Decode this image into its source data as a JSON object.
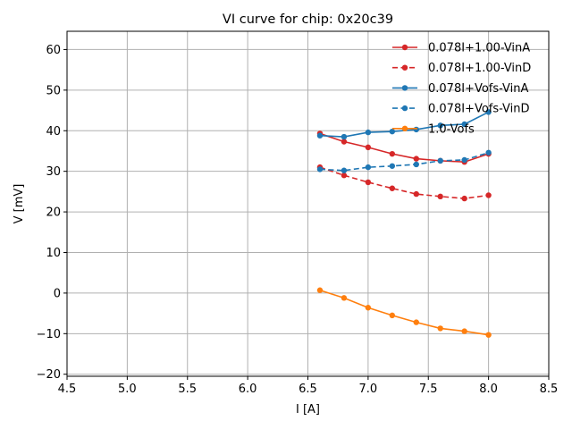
{
  "chart_data": {
    "type": "line",
    "title": "VI curve for chip: 0x20c39",
    "xlabel": "I [A]",
    "ylabel": "V [mV]",
    "xlim": [
      4.5,
      8.5
    ],
    "ylim": [
      -20.5,
      64.5
    ],
    "xticks": [
      "4.5",
      "5.0",
      "5.5",
      "6.0",
      "6.5",
      "7.0",
      "7.5",
      "8.0",
      "8.5"
    ],
    "yticks": [
      "−20",
      "−10",
      "0",
      "10",
      "20",
      "30",
      "40",
      "50",
      "60"
    ],
    "xtick_values": [
      4.5,
      5.0,
      5.5,
      6.0,
      6.5,
      7.0,
      7.5,
      8.0,
      8.5
    ],
    "ytick_values": [
      -20,
      -10,
      0,
      10,
      20,
      30,
      40,
      50,
      60
    ],
    "grid": true,
    "legend_position": "top-right",
    "x": [
      6.6,
      6.8,
      7.0,
      7.2,
      7.4,
      7.6,
      7.8,
      8.0
    ],
    "series": [
      {
        "name": "0.078I+1.00-VinA",
        "color": "#d62728",
        "dashed": false,
        "values": [
          39.3,
          37.3,
          35.9,
          34.3,
          33.1,
          32.6,
          32.3,
          34.3
        ]
      },
      {
        "name": "0.078I+1.00-VinD",
        "color": "#d62728",
        "dashed": true,
        "values": [
          31.0,
          29.0,
          27.3,
          25.8,
          24.4,
          23.8,
          23.3,
          24.1
        ]
      },
      {
        "name": "0.078I+Vofs-VinA",
        "color": "#1f77b4",
        "dashed": false,
        "values": [
          38.8,
          38.5,
          39.6,
          39.8,
          40.3,
          41.3,
          41.6,
          44.6
        ]
      },
      {
        "name": "0.078I+Vofs-VinD",
        "color": "#1f77b4",
        "dashed": true,
        "values": [
          30.5,
          30.2,
          31.0,
          31.3,
          31.7,
          32.6,
          32.8,
          34.6
        ]
      },
      {
        "name": "1.0-Vofs",
        "color": "#ff7f0e",
        "dashed": false,
        "values": [
          0.7,
          -1.2,
          -3.6,
          -5.5,
          -7.2,
          -8.7,
          -9.4,
          -10.3
        ]
      }
    ]
  }
}
